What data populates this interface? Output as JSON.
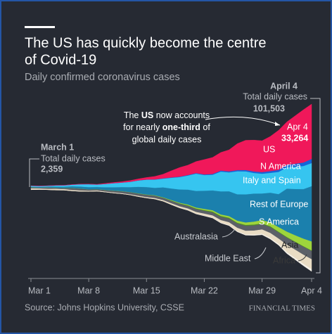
{
  "chart_data": {
    "type": "streamgraph",
    "title_lines": [
      "The US has quickly become the centre",
      "of Covid-19"
    ],
    "subtitle": "Daily confirmed coronavirus cases",
    "source": "Source: Johns Hopkins University, CSSE",
    "publisher": "FINANCIAL TIMES",
    "categories": [
      "Mar 1",
      null,
      null,
      null,
      null,
      null,
      null,
      "Mar 8",
      null,
      null,
      null,
      null,
      null,
      null,
      "Mar 15",
      null,
      null,
      null,
      null,
      null,
      null,
      "Mar 22",
      null,
      null,
      null,
      null,
      null,
      null,
      "Mar 29",
      null,
      null,
      null,
      null,
      null,
      "Apr 4"
    ],
    "series": [
      {
        "name": "Africa",
        "color": "#f6f1e8",
        "label_color": "#3a3a3a",
        "values": [
          0,
          0,
          1,
          1,
          2,
          5,
          5,
          10,
          10,
          15,
          20,
          30,
          40,
          50,
          60,
          80,
          100,
          120,
          150,
          200,
          250,
          300,
          350,
          400,
          450,
          500,
          550,
          600,
          700,
          800,
          900,
          1000,
          1150,
          1300,
          1500
        ]
      },
      {
        "name": "Asia",
        "color": "#e9dcc4",
        "label_color": "#222222",
        "values": [
          859,
          700,
          600,
          800,
          700,
          600,
          600,
          500,
          500,
          400,
          400,
          400,
          400,
          500,
          500,
          600,
          700,
          800,
          900,
          1000,
          1100,
          1200,
          1300,
          1500,
          1700,
          2000,
          2200,
          2400,
          2600,
          3000,
          3200,
          4500,
          5000,
          5500,
          6000
        ]
      },
      {
        "name": "Middle East",
        "color": "#5c6068",
        "label_color": "#c9ccd1",
        "values": [
          600,
          500,
          800,
          600,
          600,
          1200,
          1100,
          800,
          700,
          900,
          1000,
          1100,
          1200,
          1300,
          1400,
          1400,
          1300,
          1400,
          1500,
          1600,
          1700,
          1700,
          1800,
          1900,
          2200,
          2600,
          3000,
          3100,
          3200,
          3500,
          3700,
          4200,
          4500,
          4800,
          5000
        ]
      },
      {
        "name": "Australasia",
        "color": "#4f8a2b",
        "label_color": "#c9ccd1",
        "values": [
          0,
          0,
          0,
          2,
          5,
          5,
          10,
          10,
          20,
          20,
          30,
          40,
          50,
          60,
          80,
          100,
          150,
          200,
          250,
          300,
          350,
          400,
          500,
          550,
          500,
          450,
          500,
          500,
          450,
          450,
          400,
          350,
          300,
          300,
          250
        ]
      },
      {
        "name": "S America",
        "color": "#9ed43c",
        "label_color": "#ffffff",
        "values": [
          0,
          0,
          0,
          2,
          5,
          5,
          10,
          10,
          20,
          20,
          30,
          40,
          50,
          80,
          100,
          150,
          200,
          300,
          400,
          500,
          600,
          700,
          800,
          900,
          1000,
          1200,
          1500,
          1800,
          2100,
          2400,
          2800,
          3300,
          3900,
          4600,
          5500
        ]
      },
      {
        "name": "Rest of Europe",
        "color": "#1b80ad",
        "label_color": "#ffffff",
        "values": [
          300,
          400,
          500,
          700,
          800,
          1000,
          1200,
          1300,
          1300,
          1600,
          2000,
          2500,
          3000,
          4000,
          4500,
          4500,
          6000,
          7000,
          8000,
          9000,
          10000,
          11000,
          12000,
          14000,
          15000,
          16000,
          17000,
          17000,
          16000,
          18000,
          20000,
          26000,
          28000,
          30000,
          33489
        ]
      },
      {
        "name": "Italy and Spain",
        "color": "#36c5f0",
        "label_color": "#ffffff",
        "values": [
          600,
          550,
          500,
          700,
          800,
          1000,
          1400,
          1800,
          1500,
          2000,
          2500,
          2700,
          3200,
          3800,
          4500,
          5000,
          5300,
          6500,
          7500,
          8500,
          10500,
          9500,
          9500,
          12000,
          11500,
          14000,
          14000,
          12500,
          12000,
          12000,
          13500,
          13000,
          13500,
          14000,
          14000
        ]
      },
      {
        "name": "N America",
        "color": "#1565d8",
        "label_color": "#ffffff",
        "values": [
          0,
          2,
          3,
          5,
          5,
          8,
          10,
          10,
          15,
          20,
          25,
          30,
          50,
          60,
          80,
          100,
          150,
          200,
          250,
          300,
          350,
          400,
          500,
          600,
          650,
          700,
          800,
          900,
          1000,
          1100,
          1200,
          1500,
          1800,
          2100,
          2500
        ]
      },
      {
        "name": "US",
        "color": "#f0185a",
        "label_color": "#ffffff",
        "values": [
          0,
          1,
          5,
          10,
          20,
          30,
          60,
          80,
          100,
          300,
          400,
          500,
          700,
          900,
          1200,
          1800,
          2500,
          4000,
          5500,
          6000,
          7000,
          9000,
          10000,
          11000,
          13000,
          16000,
          18000,
          19000,
          19000,
          21000,
          24000,
          26000,
          29000,
          32000,
          33264
        ]
      }
    ],
    "annotations": {
      "start": {
        "heading": "March 1",
        "text": "Total daily cases",
        "value": "2,359"
      },
      "end": {
        "heading": "April 4",
        "text": "Total daily cases",
        "value": "101,503"
      },
      "us": {
        "parts": [
          "The ",
          "US",
          " now accounts",
          "for nearly ",
          "one-third",
          " of",
          "global daily cases"
        ],
        "heading": "Apr 4",
        "value": "33,264"
      }
    }
  }
}
